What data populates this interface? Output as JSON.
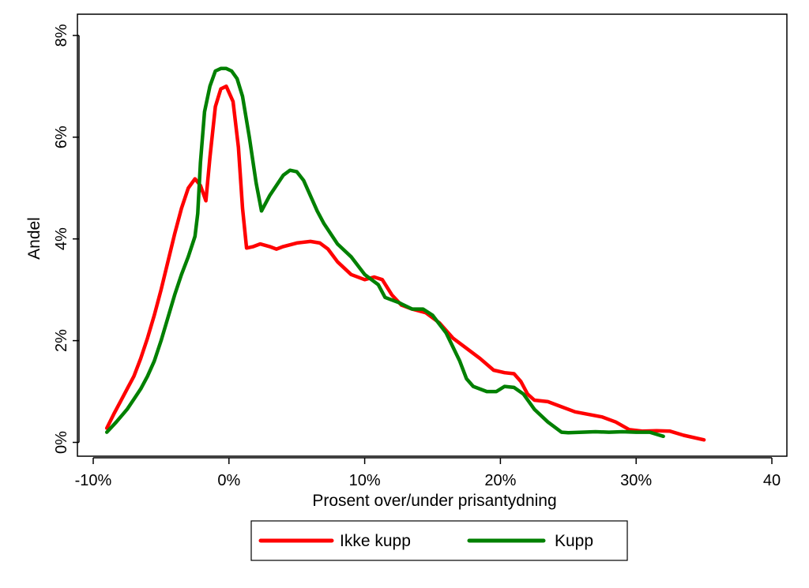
{
  "chart_data": {
    "type": "line",
    "xlabel": "Prosent over/under prisantydning",
    "ylabel": "Andel",
    "xlim": [
      -10,
      40
    ],
    "ylim": [
      0,
      8
    ],
    "x_ticks": [
      {
        "value": -10,
        "label": "-10%"
      },
      {
        "value": 0,
        "label": "0%"
      },
      {
        "value": 10,
        "label": "10%"
      },
      {
        "value": 20,
        "label": "20%"
      },
      {
        "value": 30,
        "label": "30%"
      },
      {
        "value": 40,
        "label": "40"
      }
    ],
    "y_ticks": [
      {
        "value": 0,
        "label": "0%"
      },
      {
        "value": 2,
        "label": "2%"
      },
      {
        "value": 4,
        "label": "4%"
      },
      {
        "value": 6,
        "label": "6%"
      },
      {
        "value": 8,
        "label": "8%"
      }
    ],
    "grid": false,
    "legend_position": "bottom",
    "series": [
      {
        "name": "Ikke kupp",
        "color": "#ff0000",
        "points": [
          [
            -9,
            0.28
          ],
          [
            -8.5,
            0.55
          ],
          [
            -8,
            0.8
          ],
          [
            -7.5,
            1.05
          ],
          [
            -7,
            1.3
          ],
          [
            -6.5,
            1.65
          ],
          [
            -6,
            2.05
          ],
          [
            -5.5,
            2.5
          ],
          [
            -5,
            3.0
          ],
          [
            -4.5,
            3.55
          ],
          [
            -4,
            4.1
          ],
          [
            -3.5,
            4.6
          ],
          [
            -3,
            5.0
          ],
          [
            -2.5,
            5.18
          ],
          [
            -2.1,
            5.05
          ],
          [
            -1.7,
            4.75
          ],
          [
            -1.4,
            5.6
          ],
          [
            -1,
            6.6
          ],
          [
            -0.6,
            6.95
          ],
          [
            -0.2,
            7.0
          ],
          [
            0.3,
            6.7
          ],
          [
            0.7,
            5.8
          ],
          [
            1.0,
            4.6
          ],
          [
            1.3,
            3.82
          ],
          [
            1.8,
            3.85
          ],
          [
            2.3,
            3.9
          ],
          [
            3,
            3.85
          ],
          [
            3.5,
            3.8
          ],
          [
            4,
            3.85
          ],
          [
            5,
            3.92
          ],
          [
            6,
            3.95
          ],
          [
            6.7,
            3.92
          ],
          [
            7.3,
            3.8
          ],
          [
            8,
            3.55
          ],
          [
            9,
            3.3
          ],
          [
            10,
            3.2
          ],
          [
            10.7,
            3.25
          ],
          [
            11.3,
            3.2
          ],
          [
            12,
            2.9
          ],
          [
            12.7,
            2.7
          ],
          [
            13.5,
            2.62
          ],
          [
            14.5,
            2.55
          ],
          [
            15.5,
            2.35
          ],
          [
            16.5,
            2.05
          ],
          [
            17.5,
            1.85
          ],
          [
            18.5,
            1.65
          ],
          [
            19.5,
            1.42
          ],
          [
            20.3,
            1.37
          ],
          [
            21,
            1.35
          ],
          [
            21.5,
            1.2
          ],
          [
            22,
            0.95
          ],
          [
            22.5,
            0.83
          ],
          [
            23.5,
            0.8
          ],
          [
            24.5,
            0.7
          ],
          [
            25.5,
            0.6
          ],
          [
            26.5,
            0.55
          ],
          [
            27.5,
            0.5
          ],
          [
            28.5,
            0.4
          ],
          [
            29.5,
            0.25
          ],
          [
            30.5,
            0.22
          ],
          [
            31.5,
            0.23
          ],
          [
            32.5,
            0.22
          ],
          [
            33.5,
            0.14
          ],
          [
            35,
            0.05
          ]
        ]
      },
      {
        "name": "Kupp",
        "color": "#008000",
        "points": [
          [
            -9,
            0.2
          ],
          [
            -8.3,
            0.4
          ],
          [
            -7.5,
            0.65
          ],
          [
            -7,
            0.85
          ],
          [
            -6.5,
            1.05
          ],
          [
            -6,
            1.3
          ],
          [
            -5.5,
            1.6
          ],
          [
            -5,
            2.0
          ],
          [
            -4.5,
            2.45
          ],
          [
            -4,
            2.9
          ],
          [
            -3.5,
            3.3
          ],
          [
            -3,
            3.65
          ],
          [
            -2.5,
            4.05
          ],
          [
            -2.3,
            4.5
          ],
          [
            -2.1,
            5.5
          ],
          [
            -1.8,
            6.5
          ],
          [
            -1.4,
            7.0
          ],
          [
            -1,
            7.3
          ],
          [
            -0.6,
            7.35
          ],
          [
            -0.2,
            7.35
          ],
          [
            0.2,
            7.3
          ],
          [
            0.6,
            7.15
          ],
          [
            1.0,
            6.8
          ],
          [
            1.5,
            6.0
          ],
          [
            2.0,
            5.1
          ],
          [
            2.4,
            4.55
          ],
          [
            3,
            4.85
          ],
          [
            3.5,
            5.05
          ],
          [
            4,
            5.25
          ],
          [
            4.5,
            5.35
          ],
          [
            5,
            5.32
          ],
          [
            5.5,
            5.15
          ],
          [
            6,
            4.85
          ],
          [
            6.5,
            4.55
          ],
          [
            7,
            4.3
          ],
          [
            8,
            3.9
          ],
          [
            9,
            3.65
          ],
          [
            10,
            3.3
          ],
          [
            11,
            3.1
          ],
          [
            11.5,
            2.85
          ],
          [
            12.5,
            2.75
          ],
          [
            13.5,
            2.62
          ],
          [
            14.3,
            2.62
          ],
          [
            15,
            2.5
          ],
          [
            16,
            2.15
          ],
          [
            17,
            1.6
          ],
          [
            17.5,
            1.25
          ],
          [
            18,
            1.1
          ],
          [
            19,
            1.0
          ],
          [
            19.7,
            1.0
          ],
          [
            20.3,
            1.1
          ],
          [
            21,
            1.08
          ],
          [
            21.7,
            0.95
          ],
          [
            22.5,
            0.65
          ],
          [
            23.5,
            0.4
          ],
          [
            24.5,
            0.2
          ],
          [
            25,
            0.19
          ],
          [
            26,
            0.2
          ],
          [
            27,
            0.21
          ],
          [
            28,
            0.2
          ],
          [
            29,
            0.21
          ],
          [
            30,
            0.2
          ],
          [
            31,
            0.2
          ],
          [
            32,
            0.12
          ]
        ]
      }
    ]
  }
}
